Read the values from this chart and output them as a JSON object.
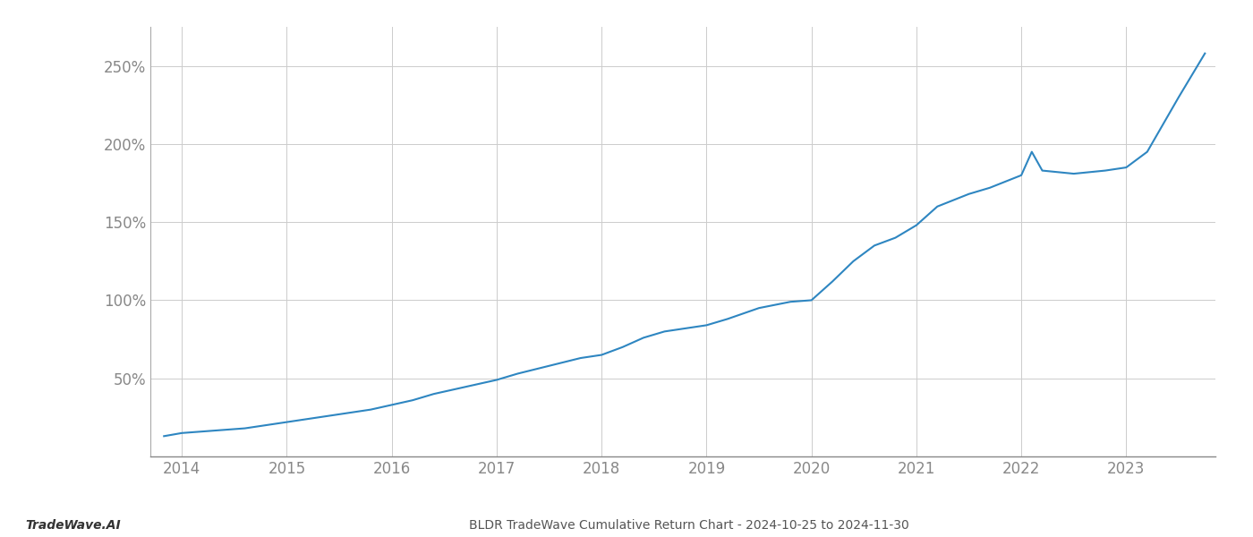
{
  "title": "BLDR TradeWave Cumulative Return Chart - 2024-10-25 to 2024-11-30",
  "watermark": "TradeWave.AI",
  "line_color": "#2e86c1",
  "line_width": 1.5,
  "background_color": "#ffffff",
  "grid_color": "#cccccc",
  "xlim": [
    2013.7,
    2023.85
  ],
  "ylim": [
    0,
    275
  ],
  "yticks": [
    50,
    100,
    150,
    200,
    250
  ],
  "xticks": [
    2014,
    2015,
    2016,
    2017,
    2018,
    2019,
    2020,
    2021,
    2022,
    2023
  ],
  "x": [
    2013.83,
    2014.0,
    2014.2,
    2014.4,
    2014.6,
    2014.8,
    2015.0,
    2015.2,
    2015.5,
    2015.8,
    2016.0,
    2016.2,
    2016.4,
    2016.6,
    2016.8,
    2017.0,
    2017.2,
    2017.5,
    2017.8,
    2018.0,
    2018.2,
    2018.4,
    2018.6,
    2018.8,
    2019.0,
    2019.2,
    2019.5,
    2019.8,
    2020.0,
    2020.2,
    2020.4,
    2020.6,
    2020.8,
    2021.0,
    2021.2,
    2021.5,
    2021.7,
    2022.0,
    2022.1,
    2022.2,
    2022.5,
    2022.8,
    2023.0,
    2023.2,
    2023.5,
    2023.75
  ],
  "y": [
    13,
    15,
    16,
    17,
    18,
    20,
    22,
    24,
    27,
    30,
    33,
    36,
    40,
    43,
    46,
    49,
    53,
    58,
    63,
    65,
    70,
    76,
    80,
    82,
    84,
    88,
    95,
    99,
    100,
    112,
    125,
    135,
    140,
    148,
    160,
    168,
    172,
    180,
    195,
    183,
    181,
    183,
    185,
    195,
    230,
    258
  ]
}
